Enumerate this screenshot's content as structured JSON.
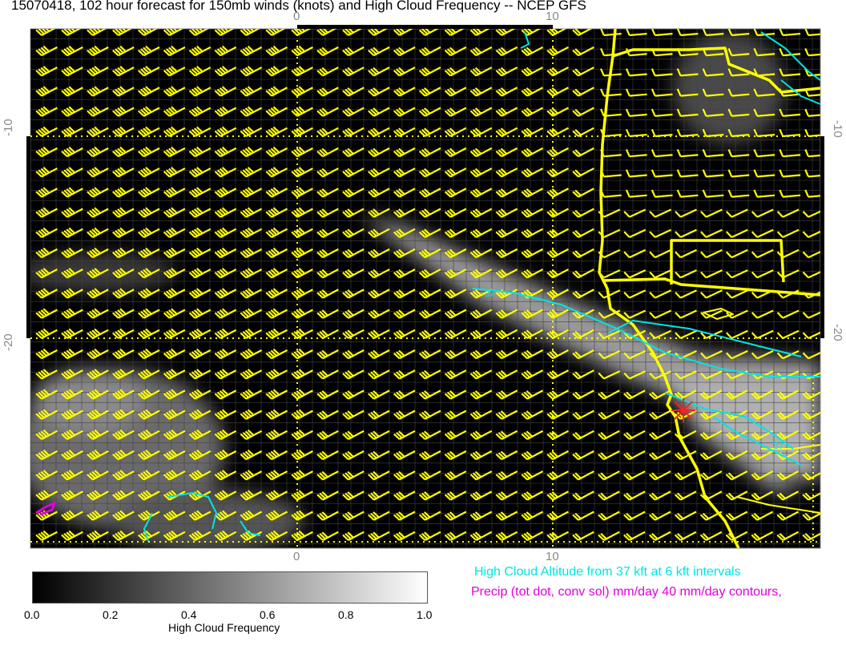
{
  "title": "15070418, 102 hour forecast for 150mb winds (knots) and High Cloud Frequency -- NCEP GFS",
  "axes": {
    "x_ticks": [
      "0",
      "10"
    ],
    "y_ticks": [
      "-10",
      "-20"
    ]
  },
  "colorbar": {
    "title": "High Cloud Frequency",
    "ticks": [
      "0.0",
      "0.2",
      "0.4",
      "0.6",
      "0.8",
      "1.0"
    ],
    "range": [
      0.0,
      1.0
    ],
    "colormap": "grayscale black-to-white"
  },
  "legend": {
    "cloud_altitude": "High Cloud Altitude from 37 kft at 6 kft intervals",
    "precip": "Precip (tot dot, conv sol) mm/day 40 mm/day contours,"
  },
  "contour_labels": [
    "37",
    "37"
  ],
  "colors": {
    "wind_barbs": "#ffff00",
    "coastline": "#ffff00",
    "cloud_altitude_contours": "#00e5e5",
    "precip_contours": "#e000e0",
    "marker": "#ff2020"
  },
  "marker_icon": "red-asterisk-location"
}
